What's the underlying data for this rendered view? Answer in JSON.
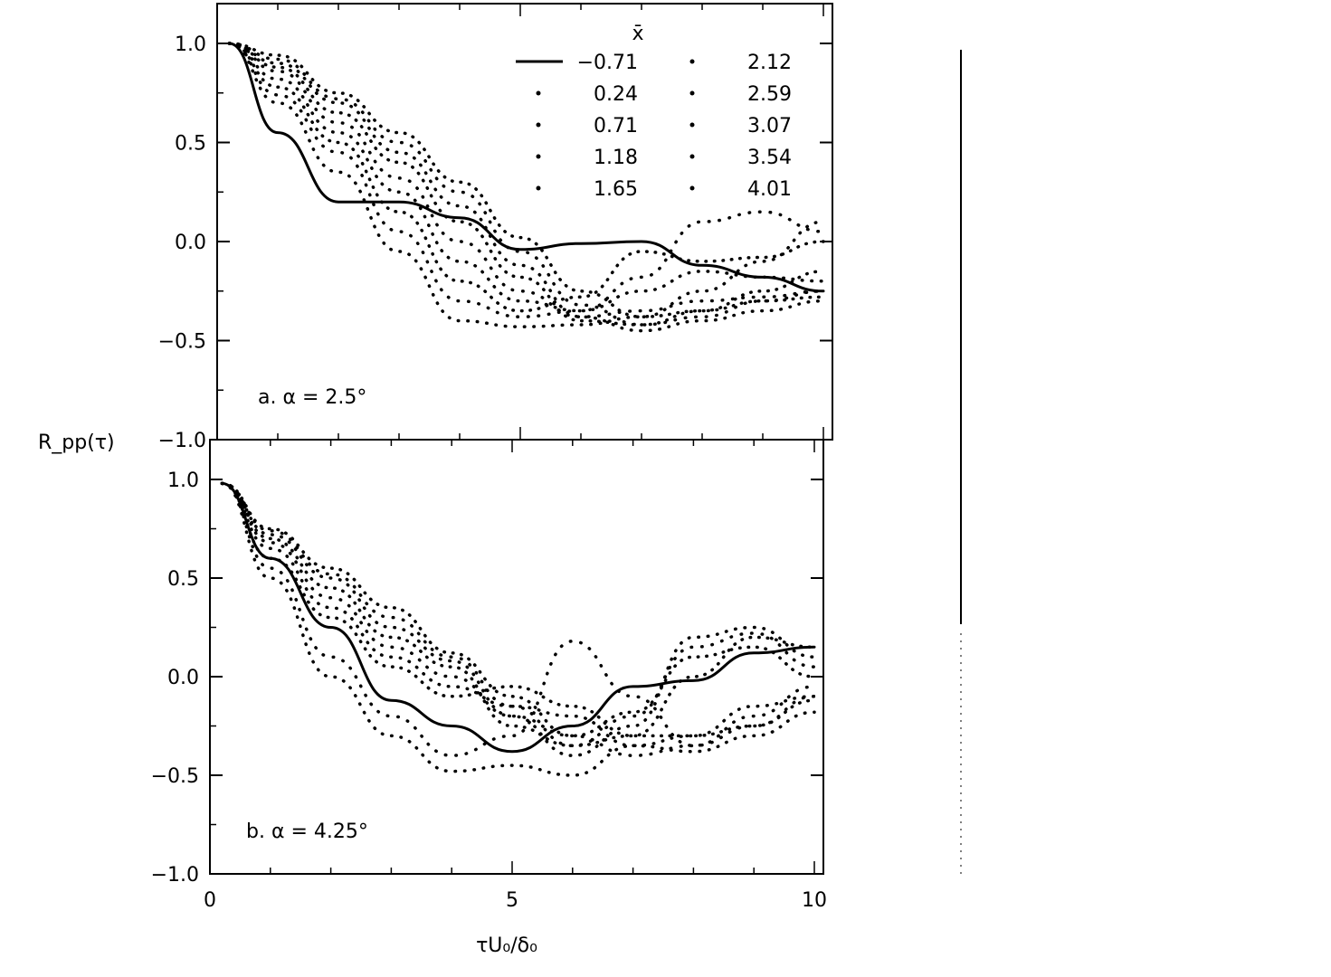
{
  "chart_data": [
    {
      "type": "line",
      "panel_label": "a. α = 2.5°",
      "ylabel": "R_pp(τ)",
      "xlabel": "",
      "xlim": [
        0,
        10
      ],
      "ylim": [
        -1.0,
        1.0
      ],
      "yticks": [
        1.0,
        0.5,
        0.0,
        -0.5,
        -1.0
      ],
      "ytick_labels": [
        "1.0",
        "0.5",
        "0.0",
        "−0.5",
        "−1.0"
      ],
      "xticks": [
        0,
        5,
        10
      ],
      "legend_title": "x̄",
      "legend_position": "top-right",
      "x": [
        0.2,
        1,
        2,
        3,
        4,
        5,
        6,
        7,
        8,
        9,
        10
      ],
      "series": [
        {
          "name": "−0.71",
          "style": "solid",
          "values": [
            1.0,
            0.55,
            0.2,
            0.2,
            0.12,
            -0.04,
            -0.01,
            0.0,
            -0.12,
            -0.18,
            -0.25
          ]
        },
        {
          "name": "0.24",
          "style": "dotted",
          "values": [
            1.0,
            0.7,
            0.35,
            -0.05,
            -0.4,
            -0.43,
            -0.42,
            -0.38,
            -0.25,
            -0.1,
            0.1
          ]
        },
        {
          "name": "0.71",
          "style": "dotted",
          "values": [
            1.0,
            0.74,
            0.45,
            0.05,
            -0.3,
            -0.38,
            -0.35,
            -0.18,
            0.1,
            0.15,
            0.05
          ]
        },
        {
          "name": "1.18",
          "style": "dotted",
          "values": [
            1.0,
            0.78,
            0.5,
            0.15,
            -0.2,
            -0.35,
            -0.28,
            -0.05,
            -0.1,
            -0.08,
            0.0
          ]
        },
        {
          "name": "1.65",
          "style": "dotted",
          "values": [
            1.0,
            0.82,
            0.55,
            0.25,
            -0.1,
            -0.3,
            -0.35,
            -0.25,
            -0.15,
            -0.18,
            -0.2
          ]
        },
        {
          "name": "2.12",
          "style": "dotted",
          "values": [
            1.0,
            0.86,
            0.6,
            0.32,
            0.0,
            -0.25,
            -0.38,
            -0.35,
            -0.3,
            -0.28,
            -0.25
          ]
        },
        {
          "name": "2.59",
          "style": "dotted",
          "values": [
            1.0,
            0.88,
            0.65,
            0.4,
            0.1,
            -0.18,
            -0.4,
            -0.42,
            -0.35,
            -0.3,
            -0.28
          ]
        },
        {
          "name": "3.07",
          "style": "dotted",
          "values": [
            1.0,
            0.9,
            0.7,
            0.45,
            0.18,
            -0.12,
            -0.38,
            -0.45,
            -0.4,
            -0.35,
            -0.3
          ]
        },
        {
          "name": "3.54",
          "style": "dotted",
          "values": [
            1.0,
            0.92,
            0.72,
            0.5,
            0.25,
            -0.05,
            -0.32,
            -0.42,
            -0.38,
            -0.3,
            -0.25
          ]
        },
        {
          "name": "4.01",
          "style": "dotted",
          "values": [
            1.0,
            0.94,
            0.75,
            0.55,
            0.3,
            0.02,
            -0.25,
            -0.38,
            -0.35,
            -0.25,
            -0.15
          ]
        }
      ]
    },
    {
      "type": "line",
      "panel_label": "b. α = 4.25°",
      "ylabel": "",
      "xlabel": "τU₀/δ₀",
      "xlim": [
        0,
        10
      ],
      "ylim": [
        -1.0,
        1.0
      ],
      "yticks": [
        1.0,
        0.5,
        0.0,
        -0.5,
        -1.0
      ],
      "ytick_labels": [
        "1.0",
        "0.5",
        "0.0",
        "−0.5",
        "−1.0"
      ],
      "xticks": [
        0,
        5,
        10
      ],
      "xtick_labels": [
        "0",
        "5",
        "10"
      ],
      "x": [
        0.2,
        1,
        2,
        3,
        4,
        5,
        6,
        7,
        8,
        9,
        10
      ],
      "series": [
        {
          "name": "−0.71",
          "style": "solid",
          "values": [
            0.98,
            0.6,
            0.25,
            -0.12,
            -0.25,
            -0.38,
            -0.25,
            -0.05,
            -0.02,
            0.12,
            0.15
          ]
        },
        {
          "name": "0.24",
          "style": "dotted",
          "values": [
            0.98,
            0.5,
            0.0,
            -0.3,
            -0.48,
            -0.45,
            -0.5,
            -0.35,
            -0.3,
            -0.15,
            -0.1
          ]
        },
        {
          "name": "0.71",
          "style": "dotted",
          "values": [
            0.98,
            0.55,
            0.1,
            -0.2,
            -0.4,
            -0.3,
            0.18,
            -0.1,
            -0.35,
            -0.2,
            -0.05
          ]
        },
        {
          "name": "1.18",
          "style": "dotted",
          "values": [
            0.98,
            0.6,
            0.3,
            0.05,
            -0.1,
            -0.05,
            -0.15,
            -0.3,
            -0.3,
            -0.25,
            -0.12
          ]
        },
        {
          "name": "1.65",
          "style": "dotted",
          "values": [
            0.98,
            0.65,
            0.35,
            0.1,
            -0.05,
            -0.15,
            -0.2,
            -0.35,
            -0.38,
            -0.3,
            -0.18
          ]
        },
        {
          "name": "2.12",
          "style": "dotted",
          "values": [
            0.98,
            0.68,
            0.4,
            0.15,
            0.0,
            -0.2,
            -0.3,
            -0.4,
            -0.35,
            -0.25,
            -0.1
          ]
        },
        {
          "name": "2.59",
          "style": "dotted",
          "values": [
            0.98,
            0.7,
            0.45,
            0.2,
            0.05,
            -0.25,
            -0.35,
            -0.3,
            0.0,
            0.2,
            0.15
          ]
        },
        {
          "name": "3.07",
          "style": "dotted",
          "values": [
            0.98,
            0.72,
            0.5,
            0.25,
            0.08,
            -0.2,
            -0.4,
            -0.25,
            0.2,
            0.25,
            0.1
          ]
        },
        {
          "name": "3.54",
          "style": "dotted",
          "values": [
            0.98,
            0.74,
            0.52,
            0.3,
            0.1,
            -0.15,
            -0.35,
            -0.2,
            0.15,
            0.22,
            0.05
          ]
        },
        {
          "name": "4.01",
          "style": "dotted",
          "values": [
            0.98,
            0.75,
            0.55,
            0.35,
            0.12,
            -0.1,
            -0.3,
            -0.18,
            0.1,
            0.15,
            0.0
          ]
        }
      ]
    }
  ]
}
